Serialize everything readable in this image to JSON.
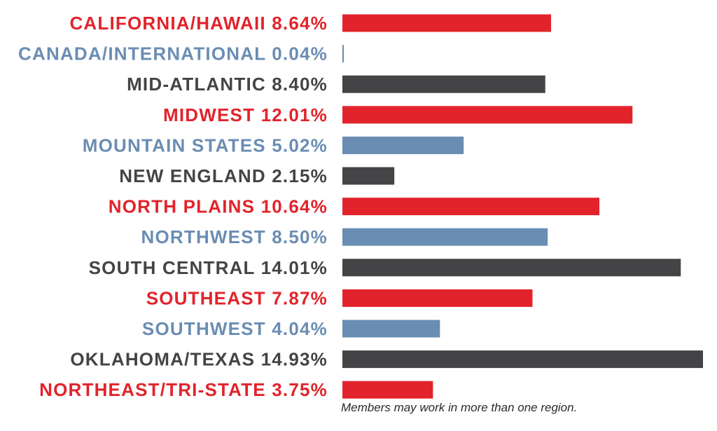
{
  "chart_data": {
    "type": "bar",
    "orientation": "horizontal",
    "categories": [
      "CALIFORNIA/HAWAII",
      "CANADA/INTERNATIONAL",
      "MID-ATLANTIC",
      "MIDWEST",
      "MOUNTAIN STATES",
      "NEW ENGLAND",
      "NORTH PLAINS",
      "NORTHWEST",
      "SOUTH CENTRAL",
      "SOUTHEAST",
      "SOUTHWEST",
      "OKLAHOMA/TEXAS",
      "NORTHEAST/TRI-STATE"
    ],
    "value_labels": [
      "8.64%",
      "0.04%",
      "8.40%",
      "12.01%",
      "5.02%",
      "2.15%",
      "10.64%",
      "8.50%",
      "14.01%",
      "7.87%",
      "4.04%",
      "14.93%",
      "3.75%"
    ],
    "values": [
      8.64,
      0.04,
      8.4,
      12.01,
      5.02,
      2.15,
      10.64,
      8.5,
      14.01,
      7.87,
      4.04,
      14.93,
      3.75
    ],
    "colors": [
      "#e2232b",
      "#6a8db3",
      "#444446",
      "#e2232b",
      "#6a8db3",
      "#444446",
      "#e2232b",
      "#6a8db3",
      "#444446",
      "#e2232b",
      "#6a8db3",
      "#444446",
      "#e2232b"
    ],
    "xlim": [
      0,
      14.93
    ],
    "grid": false,
    "title": "",
    "xlabel": "",
    "ylabel": "",
    "footnote": "Members may work in more than one region."
  }
}
